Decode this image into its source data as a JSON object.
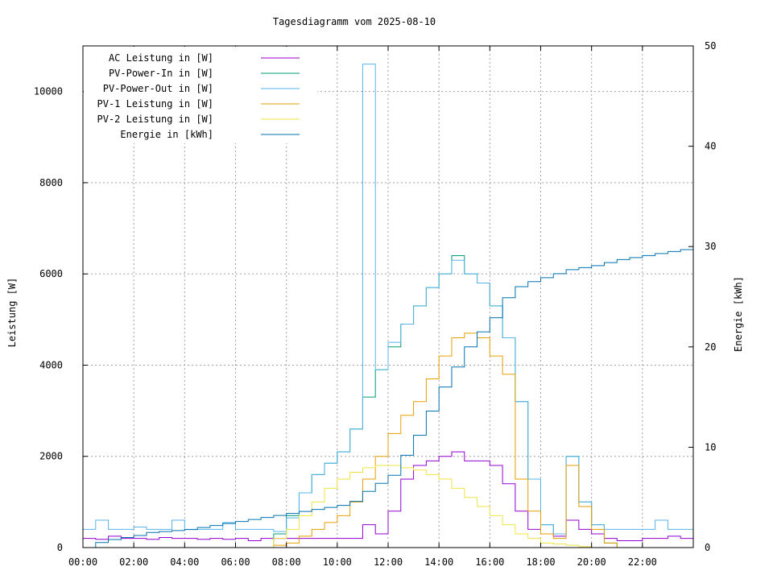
{
  "chart_data": {
    "type": "line",
    "title": "Tagesdiagramm vom 2025-08-10",
    "xlabel": "",
    "ylabel": "Leistung [W]",
    "y2label": "Energie [kWh]",
    "xlim": [
      0,
      24
    ],
    "ylim": [
      0,
      11000
    ],
    "y2lim": [
      0,
      50
    ],
    "grid": true,
    "legend_position": "top-left",
    "xticks": [
      {
        "v": 0,
        "label": "00:00"
      },
      {
        "v": 2,
        "label": "02:00"
      },
      {
        "v": 4,
        "label": "04:00"
      },
      {
        "v": 6,
        "label": "06:00"
      },
      {
        "v": 8,
        "label": "08:00"
      },
      {
        "v": 10,
        "label": "10:00"
      },
      {
        "v": 12,
        "label": "12:00"
      },
      {
        "v": 14,
        "label": "14:00"
      },
      {
        "v": 16,
        "label": "16:00"
      },
      {
        "v": 18,
        "label": "18:00"
      },
      {
        "v": 20,
        "label": "20:00"
      },
      {
        "v": 22,
        "label": "22:00"
      }
    ],
    "yticks": [
      {
        "v": 0,
        "label": "0"
      },
      {
        "v": 2000,
        "label": "2000"
      },
      {
        "v": 4000,
        "label": "4000"
      },
      {
        "v": 6000,
        "label": "6000"
      },
      {
        "v": 8000,
        "label": "8000"
      },
      {
        "v": 10000,
        "label": "10000"
      }
    ],
    "y2ticks": [
      {
        "v": 0,
        "label": "0"
      },
      {
        "v": 10,
        "label": "10"
      },
      {
        "v": 20,
        "label": "20"
      },
      {
        "v": 30,
        "label": "30"
      },
      {
        "v": 40,
        "label": "40"
      },
      {
        "v": 50,
        "label": "50"
      }
    ],
    "x": [
      0,
      0.5,
      1,
      1.5,
      2,
      2.5,
      3,
      3.5,
      4,
      4.5,
      5,
      5.5,
      6,
      6.5,
      7,
      7.5,
      8,
      8.5,
      9,
      9.5,
      10,
      10.5,
      11,
      11.5,
      12,
      12.5,
      13,
      13.5,
      14,
      14.5,
      15,
      15.5,
      16,
      16.5,
      17,
      17.5,
      18,
      18.5,
      19,
      19.5,
      20,
      20.5,
      21,
      21.5,
      22,
      22.5,
      23,
      23.5,
      24
    ],
    "series": [
      {
        "name": "AC Leistung in [W]",
        "axis": "y1",
        "color": "#9400d3",
        "values": [
          200,
          180,
          250,
          200,
          200,
          180,
          220,
          200,
          200,
          180,
          200,
          180,
          200,
          150,
          200,
          200,
          200,
          200,
          200,
          200,
          200,
          200,
          500,
          300,
          800,
          1500,
          1800,
          1900,
          2000,
          2100,
          1900,
          1900,
          1800,
          1400,
          800,
          400,
          300,
          250,
          600,
          400,
          300,
          200,
          150,
          150,
          200,
          200,
          250,
          200,
          200
        ]
      },
      {
        "name": "PV-Power-In in [W]",
        "axis": "y1",
        "color": "#009e73",
        "values": [
          0,
          0,
          0,
          0,
          0,
          0,
          0,
          0,
          0,
          0,
          0,
          0,
          0,
          0,
          0,
          300,
          700,
          1200,
          1600,
          1850,
          2100,
          2600,
          3300,
          3900,
          4400,
          4900,
          5300,
          5700,
          6000,
          6400,
          6000,
          5800,
          5300,
          4600,
          3200,
          1500,
          500,
          300,
          2000,
          1000,
          500,
          100,
          0,
          0,
          0,
          0,
          0,
          0,
          0
        ]
      },
      {
        "name": "PV-Power-Out in [W]",
        "axis": "y1",
        "color": "#56b4e9",
        "values": [
          400,
          600,
          400,
          400,
          450,
          400,
          400,
          600,
          400,
          400,
          400,
          550,
          400,
          400,
          400,
          350,
          650,
          1200,
          1600,
          1850,
          2100,
          2600,
          10600,
          3900,
          4500,
          4900,
          5300,
          5700,
          6000,
          6300,
          6000,
          5800,
          5300,
          4600,
          3200,
          1500,
          500,
          300,
          2000,
          1000,
          500,
          400,
          400,
          400,
          400,
          600,
          400,
          400,
          600
        ]
      },
      {
        "name": "PV-1 Leistung in [W]",
        "axis": "y1",
        "color": "#e69f00",
        "values": [
          0,
          0,
          0,
          0,
          0,
          0,
          0,
          0,
          0,
          0,
          0,
          0,
          0,
          0,
          0,
          50,
          100,
          250,
          400,
          550,
          700,
          1000,
          1500,
          2000,
          2500,
          2900,
          3200,
          3700,
          4200,
          4600,
          4700,
          4600,
          4200,
          3800,
          1500,
          800,
          300,
          200,
          1800,
          900,
          400,
          100,
          0,
          0,
          0,
          0,
          0,
          0,
          0
        ]
      },
      {
        "name": "PV-2 Leistung in [W]",
        "axis": "y1",
        "color": "#f0e442",
        "values": [
          0,
          0,
          0,
          0,
          0,
          0,
          0,
          0,
          0,
          0,
          0,
          0,
          0,
          0,
          0,
          200,
          400,
          700,
          1000,
          1300,
          1500,
          1650,
          1750,
          1800,
          1800,
          1750,
          1700,
          1600,
          1500,
          1300,
          1100,
          900,
          700,
          500,
          300,
          200,
          100,
          80,
          50,
          20,
          0,
          0,
          0,
          0,
          0,
          0,
          0,
          0,
          0
        ]
      },
      {
        "name": "Energie in [kWh]",
        "axis": "y2",
        "color": "#0072b2",
        "values": [
          0,
          0.5,
          0.8,
          1.0,
          1.2,
          1.5,
          1.6,
          1.7,
          1.8,
          2.0,
          2.2,
          2.4,
          2.6,
          2.8,
          3.0,
          3.2,
          3.4,
          3.6,
          3.8,
          4.0,
          4.2,
          4.6,
          5.6,
          6.4,
          7.2,
          9.2,
          11.2,
          13.6,
          16.0,
          18.0,
          20.0,
          21.5,
          22.9,
          24.9,
          26.0,
          26.5,
          26.9,
          27.3,
          27.7,
          27.9,
          28.1,
          28.4,
          28.7,
          28.9,
          29.1,
          29.3,
          29.5,
          29.7,
          29.9
        ]
      }
    ]
  }
}
